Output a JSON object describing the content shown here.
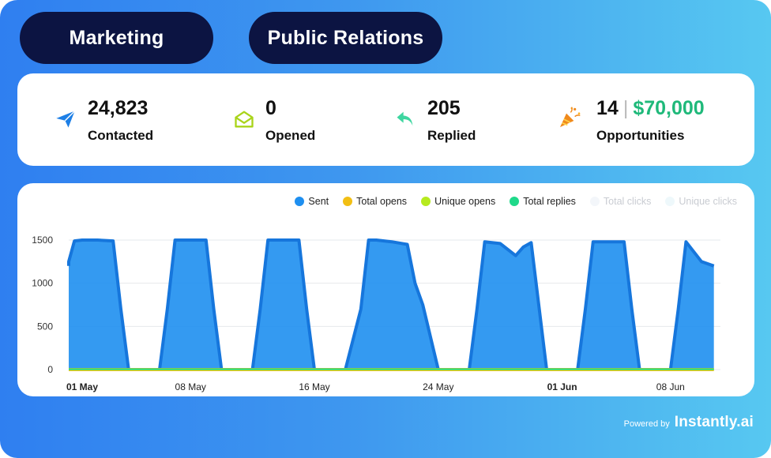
{
  "tabs": [
    {
      "label": "Marketing"
    },
    {
      "label": "Public Relations"
    }
  ],
  "stats": {
    "contacted": {
      "value": "24,823",
      "label": "Contacted",
      "icon": "paper-plane-icon"
    },
    "opened": {
      "value": "0",
      "label": "Opened",
      "icon": "envelope-open-icon"
    },
    "replied": {
      "value": "205",
      "label": "Replied",
      "icon": "reply-arrow-icon"
    },
    "opportunities": {
      "count": "14",
      "separator": "|",
      "amount": "$70,000",
      "label": "Opportunities",
      "icon": "party-popper-icon"
    }
  },
  "legend": [
    {
      "label": "Sent",
      "color": "#1e8ff0",
      "active": true
    },
    {
      "label": "Total opens",
      "color": "#f2bf14",
      "active": true
    },
    {
      "label": "Unique opens",
      "color": "#b6ea1f",
      "active": true
    },
    {
      "label": "Total replies",
      "color": "#1fd98a",
      "active": true
    },
    {
      "label": "Total clicks",
      "color": "#f3f6fa",
      "active": false
    },
    {
      "label": "Unique clicks",
      "color": "#eef8fb",
      "active": false
    }
  ],
  "chart_data": {
    "type": "area",
    "ylim": [
      0,
      1500
    ],
    "yticks": [
      "0",
      "500",
      "1000",
      "1500"
    ],
    "xticks": [
      {
        "label": "01 May",
        "day": 1,
        "bold": true
      },
      {
        "label": "08 May",
        "day": 8,
        "bold": false
      },
      {
        "label": "16 May",
        "day": 16,
        "bold": false
      },
      {
        "label": "24 May",
        "day": 24,
        "bold": false
      },
      {
        "label": "01 Jun",
        "day": 32,
        "bold": true
      },
      {
        "label": "08 Jun",
        "day": 39,
        "bold": false
      }
    ],
    "grid": true,
    "series": [
      {
        "name": "Sent",
        "color": "#1e8ff0",
        "x": [
          -0.7,
          0,
          0.5,
          1.0,
          2.0,
          3.0,
          3.5,
          4.0,
          5.0,
          6.0,
          6.5,
          7.0,
          8.0,
          9.0,
          9.5,
          10.0,
          11.0,
          12.0,
          12.5,
          13.0,
          14.0,
          15.0,
          15.5,
          16.0,
          17.0,
          18.0,
          19.0,
          19.5,
          20.0,
          21.0,
          22.0,
          22.5,
          23.0,
          24.0,
          25.0,
          26.0,
          26.5,
          27.0,
          28.0,
          29.0,
          29.5,
          30.0,
          31.0,
          32.0,
          33.0,
          33.5,
          34.0,
          35.0,
          36.0,
          36.5,
          37.0,
          38.0,
          39.0,
          39.5,
          40.0,
          41.0,
          41.8
        ],
        "values": [
          1200,
          1250,
          1490,
          1500,
          1500,
          1490,
          700,
          0,
          0,
          0,
          700,
          1500,
          1500,
          1500,
          700,
          0,
          0,
          0,
          700,
          1500,
          1500,
          1500,
          700,
          0,
          0,
          0,
          700,
          1500,
          1500,
          1480,
          1450,
          1000,
          750,
          0,
          0,
          0,
          700,
          1480,
          1460,
          1320,
          1420,
          1470,
          0,
          0,
          0,
          700,
          1480,
          1480,
          1480,
          700,
          0,
          0,
          0,
          700,
          1480,
          1250,
          1200
        ]
      },
      {
        "name": "Total opens",
        "color": "#f2bf14",
        "x": [
          -0.7,
          41.8
        ],
        "values": [
          0,
          0
        ]
      },
      {
        "name": "Unique opens",
        "color": "#b6ea1f",
        "x": [
          -0.7,
          41.8
        ],
        "values": [
          0,
          0
        ]
      },
      {
        "name": "Total replies",
        "color": "#1fd98a",
        "x": [
          -0.7,
          41.8
        ],
        "values": [
          5,
          5
        ]
      }
    ]
  },
  "footer": {
    "powered_by": "Powered by",
    "brand": "Instantly.ai"
  }
}
